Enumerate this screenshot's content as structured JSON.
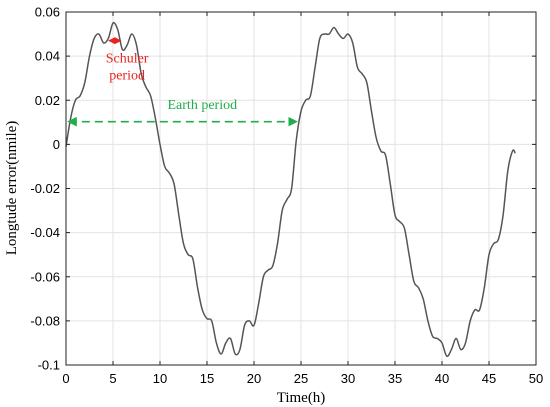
{
  "chart_data": {
    "type": "line",
    "title": "",
    "xlabel": "Time(h)",
    "ylabel": "Longtude error(nmile)",
    "xlim": [
      0,
      50
    ],
    "ylim": [
      -0.1,
      0.06
    ],
    "grid": true,
    "x_ticks": [
      0,
      5,
      10,
      15,
      20,
      25,
      30,
      35,
      40,
      45,
      50
    ],
    "x_tick_labels": [
      "0",
      "5",
      "10",
      "15",
      "20",
      "25",
      "30",
      "35",
      "40",
      "45",
      "50"
    ],
    "y_ticks": [
      -0.1,
      -0.08,
      -0.06,
      -0.04,
      -0.02,
      0,
      0.02,
      0.04,
      0.06
    ],
    "y_tick_labels": [
      "-0.1",
      "-0.08",
      "-0.06",
      "-0.04",
      "-0.02",
      "0",
      "0.02",
      "0.04",
      "0.06"
    ],
    "series": [
      {
        "color": "#555555",
        "points": [
          [
            0,
            -0.001
          ],
          [
            0.5,
            0.012
          ],
          [
            1,
            0.02
          ],
          [
            1.5,
            0.022
          ],
          [
            2,
            0.028
          ],
          [
            2.5,
            0.04
          ],
          [
            3,
            0.048
          ],
          [
            3.5,
            0.05
          ],
          [
            4,
            0.046
          ],
          [
            4.5,
            0.048
          ],
          [
            5,
            0.055
          ],
          [
            5.5,
            0.052
          ],
          [
            6,
            0.043
          ],
          [
            6.5,
            0.045
          ],
          [
            7,
            0.05
          ],
          [
            7.5,
            0.045
          ],
          [
            8,
            0.032
          ],
          [
            8.5,
            0.026
          ],
          [
            9,
            0.022
          ],
          [
            9.5,
            0.012
          ],
          [
            10,
            0.0
          ],
          [
            10.5,
            -0.01
          ],
          [
            11,
            -0.013
          ],
          [
            11.5,
            -0.018
          ],
          [
            12,
            -0.032
          ],
          [
            12.5,
            -0.045
          ],
          [
            13,
            -0.05
          ],
          [
            13.5,
            -0.052
          ],
          [
            14,
            -0.065
          ],
          [
            14.5,
            -0.075
          ],
          [
            15,
            -0.079
          ],
          [
            15.5,
            -0.08
          ],
          [
            16,
            -0.09
          ],
          [
            16.5,
            -0.095
          ],
          [
            17,
            -0.09
          ],
          [
            17.5,
            -0.088
          ],
          [
            18,
            -0.095
          ],
          [
            18.5,
            -0.093
          ],
          [
            19,
            -0.082
          ],
          [
            19.5,
            -0.08
          ],
          [
            20,
            -0.082
          ],
          [
            20.5,
            -0.072
          ],
          [
            21,
            -0.06
          ],
          [
            21.5,
            -0.057
          ],
          [
            22,
            -0.055
          ],
          [
            22.5,
            -0.045
          ],
          [
            23,
            -0.03
          ],
          [
            23.5,
            -0.025
          ],
          [
            24,
            -0.02
          ],
          [
            24.5,
            0.002
          ],
          [
            25,
            0.015
          ],
          [
            25.5,
            0.02
          ],
          [
            26,
            0.022
          ],
          [
            26.5,
            0.035
          ],
          [
            27,
            0.048
          ],
          [
            27.5,
            0.05
          ],
          [
            28,
            0.05
          ],
          [
            28.5,
            0.053
          ],
          [
            29,
            0.05
          ],
          [
            29.5,
            0.048
          ],
          [
            30,
            0.05
          ],
          [
            30.5,
            0.046
          ],
          [
            31,
            0.035
          ],
          [
            31.5,
            0.032
          ],
          [
            32,
            0.028
          ],
          [
            32.5,
            0.015
          ],
          [
            33,
            0.003
          ],
          [
            33.5,
            -0.003
          ],
          [
            34,
            -0.005
          ],
          [
            34.5,
            -0.018
          ],
          [
            35,
            -0.032
          ],
          [
            35.5,
            -0.035
          ],
          [
            36,
            -0.038
          ],
          [
            36.5,
            -0.05
          ],
          [
            37,
            -0.062
          ],
          [
            37.5,
            -0.065
          ],
          [
            38,
            -0.07
          ],
          [
            38.5,
            -0.08
          ],
          [
            39,
            -0.087
          ],
          [
            39.5,
            -0.088
          ],
          [
            40,
            -0.09
          ],
          [
            40.5,
            -0.096
          ],
          [
            41,
            -0.093
          ],
          [
            41.5,
            -0.088
          ],
          [
            42,
            -0.093
          ],
          [
            42.5,
            -0.09
          ],
          [
            43,
            -0.08
          ],
          [
            43.5,
            -0.075
          ],
          [
            44,
            -0.075
          ],
          [
            44.5,
            -0.065
          ],
          [
            45,
            -0.05
          ],
          [
            45.5,
            -0.045
          ],
          [
            46,
            -0.043
          ],
          [
            46.5,
            -0.032
          ],
          [
            47,
            -0.012
          ],
          [
            47.5,
            -0.003
          ],
          [
            47.8,
            -0.004
          ]
        ]
      }
    ],
    "annotations": [
      {
        "id": "schuler",
        "text_lines": [
          "Schuler",
          "period"
        ],
        "color": "#e8231e",
        "arrow_x": [
          4.6,
          5.8
        ],
        "arrow_y": 0.047,
        "label_x": 6.5,
        "label_y": 0.037
      },
      {
        "id": "earth",
        "text": "Earth period",
        "color": "#1fae4b",
        "arrow_x": [
          0.3,
          24.5
        ],
        "arrow_y": 0.0103,
        "label_x": 14.5,
        "label_y": 0.016
      }
    ]
  }
}
